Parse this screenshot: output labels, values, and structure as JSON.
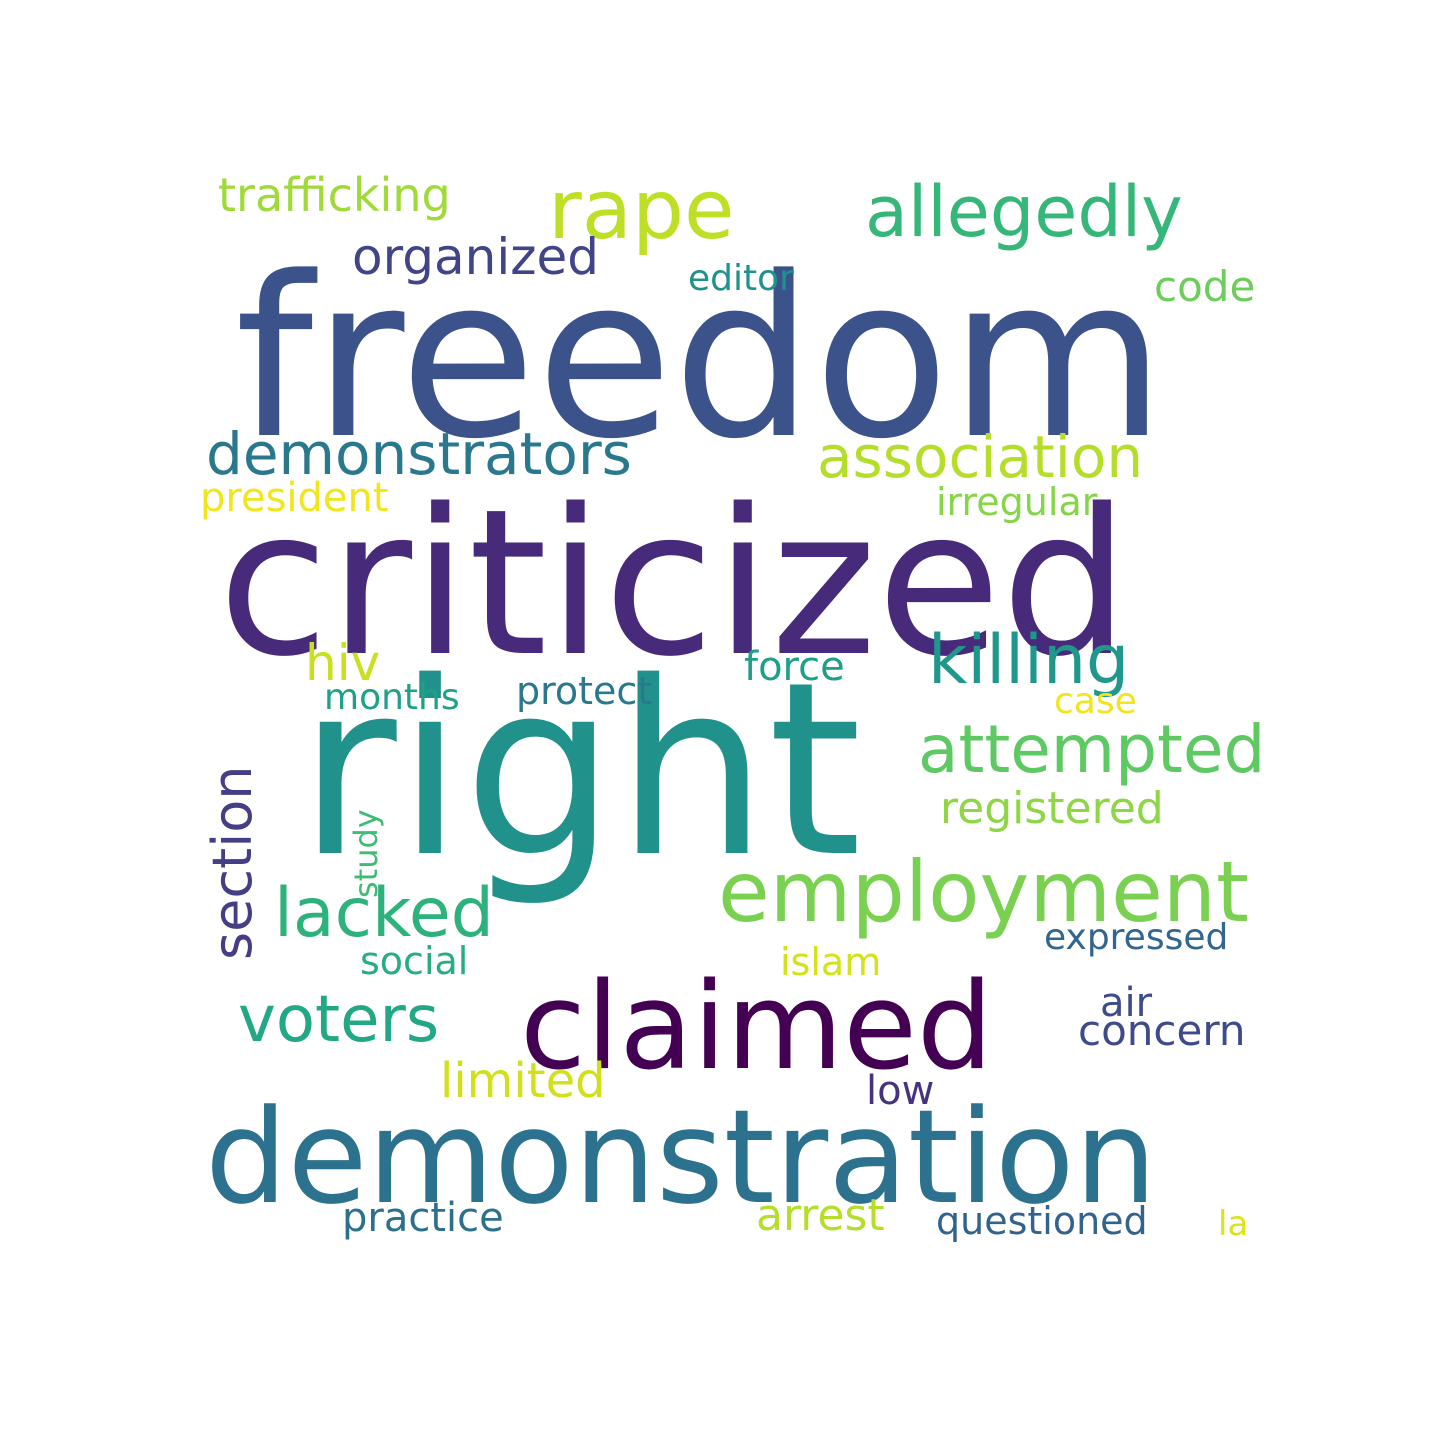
{
  "words": {
    "freedom": {
      "text": "freedom",
      "color": "#3b528b"
    },
    "criticized": {
      "text": "criticized",
      "color": "#472a7a"
    },
    "right": {
      "text": "right",
      "color": "#21918c"
    },
    "claimed": {
      "text": "claimed",
      "color": "#440154"
    },
    "demonstration": {
      "text": "demonstration",
      "color": "#2c728e"
    },
    "employment": {
      "text": "employment",
      "color": "#7ad151"
    },
    "rape": {
      "text": "rape",
      "color": "#bddf26"
    },
    "allegedly": {
      "text": "allegedly",
      "color": "#35b779"
    },
    "killing": {
      "text": "killing",
      "color": "#1f988b"
    },
    "attempted": {
      "text": "attempted",
      "color": "#5ec962"
    },
    "association": {
      "text": "association",
      "color": "#b5de2b"
    },
    "demonstrators": {
      "text": "demonstrators",
      "color": "#2a788e"
    },
    "lacked": {
      "text": "lacked",
      "color": "#2db27d"
    },
    "voters": {
      "text": "voters",
      "color": "#22a884"
    },
    "section": {
      "text": "section",
      "color": "#433e85"
    },
    "organized": {
      "text": "organized",
      "color": "#414487"
    },
    "trafficking": {
      "text": "trafficking",
      "color": "#a0da39"
    },
    "limited": {
      "text": "limited",
      "color": "#d0e11c"
    },
    "registered": {
      "text": "registered",
      "color": "#8ed645"
    },
    "hiv": {
      "text": "hiv",
      "color": "#c8e020"
    },
    "president": {
      "text": "president",
      "color": "#f1e51d"
    },
    "irregular": {
      "text": "irregular",
      "color": "#86d549"
    },
    "force": {
      "text": "force",
      "color": "#1f9e89"
    },
    "protect": {
      "text": "protect",
      "color": "#2a788e"
    },
    "months": {
      "text": "months",
      "color": "#1fa088"
    },
    "case": {
      "text": "case",
      "color": "#f1e51d"
    },
    "editor": {
      "text": "editor",
      "color": "#21918c"
    },
    "code": {
      "text": "code",
      "color": "#6ccd5a"
    },
    "concern": {
      "text": "concern",
      "color": "#3e4a89"
    },
    "air": {
      "text": "air",
      "color": "#3e4c8a"
    },
    "expressed": {
      "text": "expressed",
      "color": "#31668e"
    },
    "islam": {
      "text": "islam",
      "color": "#d2e21b"
    },
    "social": {
      "text": "social",
      "color": "#26ad81"
    },
    "study": {
      "text": "study",
      "color": "#3fbc73"
    },
    "low": {
      "text": "low",
      "color": "#46327e"
    },
    "practice": {
      "text": "practice",
      "color": "#2d708e"
    },
    "arrest": {
      "text": "arrest",
      "color": "#b5de2b"
    },
    "questioned": {
      "text": "questioned",
      "color": "#33638d"
    },
    "la": {
      "text": "la",
      "color": "#dde318"
    }
  }
}
